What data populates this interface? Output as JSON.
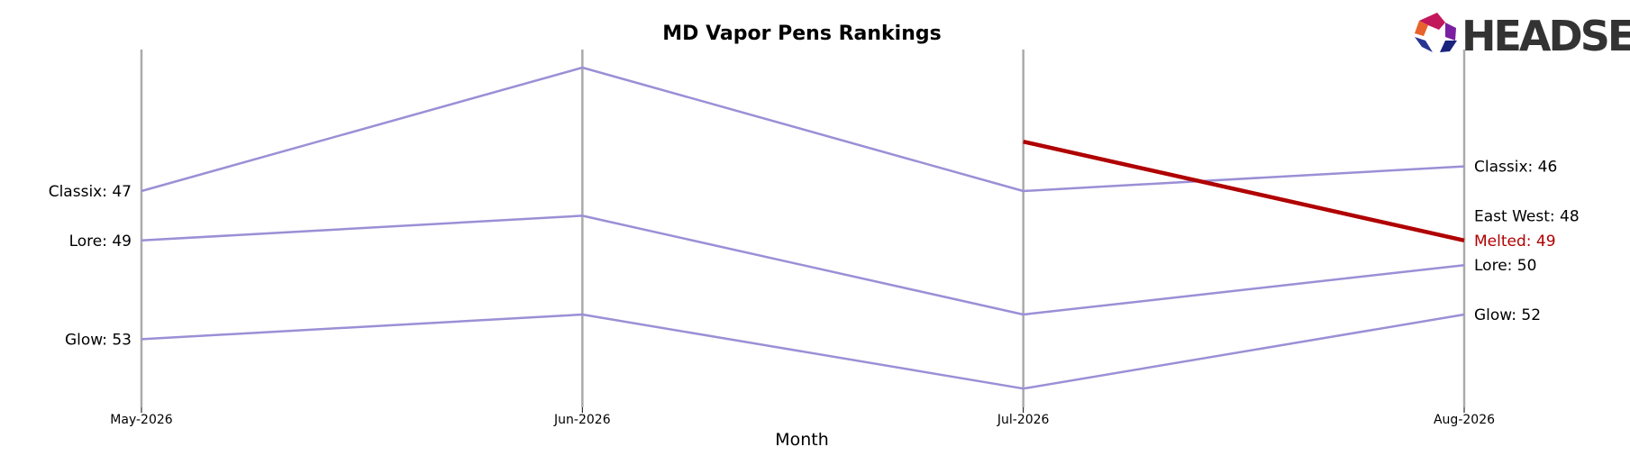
{
  "chart_data": {
    "type": "line",
    "title": "MD Vapor Pens Rankings",
    "xlabel": "Month",
    "ylabel": "",
    "x": [
      "May-2026",
      "Jun-2026",
      "Jul-2026",
      "Aug-2026"
    ],
    "ylim": [
      56,
      43
    ],
    "y_inverted": true,
    "grid": "vertical month lines",
    "series": [
      {
        "name": "Classix",
        "values": [
          47,
          42,
          47,
          46
        ],
        "color": "#9b8fd6",
        "highlight": false
      },
      {
        "name": "Lore",
        "values": [
          49,
          48,
          52,
          50
        ],
        "color": "#9b8fd6",
        "highlight": false
      },
      {
        "name": "Glow",
        "values": [
          53,
          52,
          55,
          52
        ],
        "color": "#9b8fd6",
        "highlight": false
      },
      {
        "name": "Melted",
        "values": [
          null,
          null,
          45,
          49
        ],
        "color": "#b00000",
        "highlight": true
      }
    ],
    "left_labels": [
      "Classix: 47",
      "Lore: 49",
      "Glow: 53"
    ],
    "right_labels": [
      "Classix: 46",
      "East West: 48",
      "Melted: 49",
      "Lore: 50",
      "Glow: 52"
    ]
  },
  "logo": {
    "text": "HEADSET"
  }
}
